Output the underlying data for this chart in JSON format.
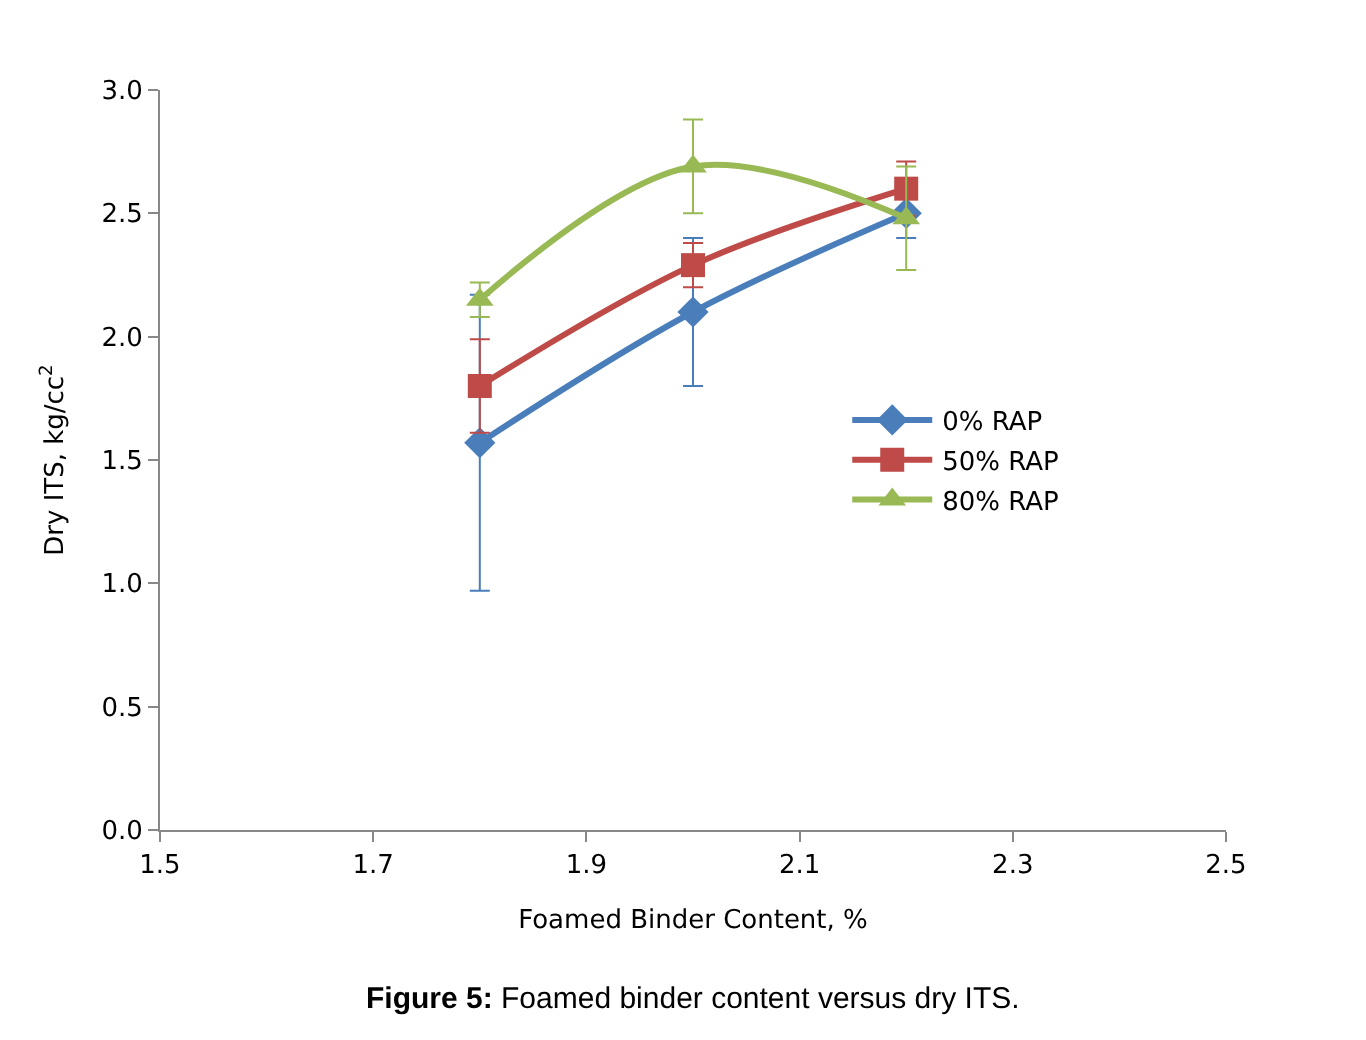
{
  "chart_data": {
    "type": "line",
    "xlabel": "Foamed Binder Content, %",
    "ylabel": "Dry ITS, kg/cc$^{2}$",
    "x": [
      1.8,
      2.0,
      2.2
    ],
    "series": [
      {
        "name": "0% RAP",
        "color": "#4a7ebb",
        "values": [
          1.57,
          2.1,
          2.5
        ],
        "errors": [
          0.6,
          0.3,
          0.1
        ],
        "marker": "diamond"
      },
      {
        "name": "50% RAP",
        "color": "#be4b48",
        "values": [
          1.8,
          2.29,
          2.6
        ],
        "errors": [
          0.19,
          0.09,
          0.11
        ],
        "marker": "square"
      },
      {
        "name": "80% RAP",
        "color": "#98b954",
        "values": [
          2.15,
          2.69,
          2.48
        ],
        "errors": [
          0.07,
          0.19,
          0.21
        ],
        "marker": "triangle"
      }
    ],
    "xlim": [
      1.5,
      2.5
    ],
    "xticks": [
      {
        "value": 1.5,
        "label": "1.5"
      },
      {
        "value": 1.7,
        "label": "1.7"
      },
      {
        "value": 1.9,
        "label": "1.9"
      },
      {
        "value": 2.1,
        "label": "2.1"
      },
      {
        "value": 2.3,
        "label": "2.3"
      },
      {
        "value": 2.5,
        "label": "2.5"
      }
    ],
    "ylim": [
      0,
      3
    ],
    "yticks": [
      {
        "value": 0,
        "label": "0.0"
      },
      {
        "value": 0.5,
        "label": "0.5"
      },
      {
        "value": 1,
        "label": "1.0"
      },
      {
        "value": 1.5,
        "label": "1.5"
      },
      {
        "value": 2,
        "label": "2.0"
      },
      {
        "value": 2.5,
        "label": "2.5"
      },
      {
        "value": 3,
        "label": "3.0"
      }
    ],
    "legend": "right",
    "annotations": [
      "**Figure 5:** Foamed binder content versus dry ITS."
    ]
  }
}
